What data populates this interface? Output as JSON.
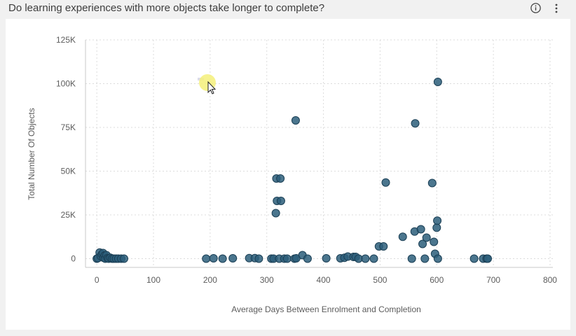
{
  "header": {
    "title": "Do learning experiences with more objects take longer to complete?",
    "info_icon": "info-circle-icon",
    "menu_icon": "vertical-ellipsis-icon"
  },
  "colors": {
    "point_fill": "#2c5e7a",
    "point_stroke": "#1b3f55",
    "grid": "#dcdcdc",
    "axis": "#c8c8c8",
    "highlight": "#f5f07a"
  },
  "chart_data": {
    "type": "scatter",
    "title": "Do learning experiences with more objects take longer to complete?",
    "xlabel": "Average Days Between Enrolment and Completion",
    "ylabel": "Total Number Of Objects",
    "xlim": [
      -20,
      805
    ],
    "ylim": [
      -5000,
      125000
    ],
    "x_ticks": [
      0,
      100,
      200,
      300,
      400,
      500,
      600,
      700,
      800
    ],
    "x_tick_labels": [
      "0",
      "100",
      "200",
      "300",
      "400",
      "500",
      "600",
      "700",
      "800"
    ],
    "y_ticks": [
      0,
      25000,
      50000,
      75000,
      100000,
      125000
    ],
    "y_tick_labels": [
      "0",
      "25K",
      "50K",
      "75K",
      "100K",
      "125K"
    ],
    "grid": true,
    "points": [
      {
        "x": 0,
        "y": 0
      },
      {
        "x": 2,
        "y": 300
      },
      {
        "x": 5,
        "y": 3500
      },
      {
        "x": 7,
        "y": 1500
      },
      {
        "x": 9,
        "y": 2500
      },
      {
        "x": 11,
        "y": 3200
      },
      {
        "x": 12,
        "y": 500
      },
      {
        "x": 14,
        "y": 1800
      },
      {
        "x": 15,
        "y": 0
      },
      {
        "x": 17,
        "y": 2000
      },
      {
        "x": 19,
        "y": 300
      },
      {
        "x": 21,
        "y": 0
      },
      {
        "x": 24,
        "y": 500
      },
      {
        "x": 27,
        "y": 0
      },
      {
        "x": 30,
        "y": 0
      },
      {
        "x": 34,
        "y": 0
      },
      {
        "x": 38,
        "y": 0
      },
      {
        "x": 43,
        "y": 0
      },
      {
        "x": 48,
        "y": 0
      },
      {
        "x": 193,
        "y": 0
      },
      {
        "x": 206,
        "y": 200
      },
      {
        "x": 222,
        "y": 0
      },
      {
        "x": 240,
        "y": 200
      },
      {
        "x": 269,
        "y": 300
      },
      {
        "x": 279,
        "y": 300
      },
      {
        "x": 286,
        "y": 0
      },
      {
        "x": 308,
        "y": 0
      },
      {
        "x": 312,
        "y": 0
      },
      {
        "x": 316,
        "y": 26000
      },
      {
        "x": 317,
        "y": 45800
      },
      {
        "x": 318,
        "y": 33000
      },
      {
        "x": 322,
        "y": 0
      },
      {
        "x": 324,
        "y": 45800
      },
      {
        "x": 325,
        "y": 33000
      },
      {
        "x": 331,
        "y": 0
      },
      {
        "x": 336,
        "y": 0
      },
      {
        "x": 349,
        "y": 0
      },
      {
        "x": 351,
        "y": 79000
      },
      {
        "x": 352,
        "y": 200
      },
      {
        "x": 363,
        "y": 2000
      },
      {
        "x": 372,
        "y": 0
      },
      {
        "x": 405,
        "y": 200
      },
      {
        "x": 430,
        "y": 200
      },
      {
        "x": 437,
        "y": 500
      },
      {
        "x": 443,
        "y": 1200
      },
      {
        "x": 453,
        "y": 1000
      },
      {
        "x": 457,
        "y": 1000
      },
      {
        "x": 462,
        "y": 0
      },
      {
        "x": 474,
        "y": 0
      },
      {
        "x": 489,
        "y": 0
      },
      {
        "x": 498,
        "y": 7000
      },
      {
        "x": 506,
        "y": 7000
      },
      {
        "x": 510,
        "y": 43500
      },
      {
        "x": 540,
        "y": 12500
      },
      {
        "x": 556,
        "y": 0
      },
      {
        "x": 561,
        "y": 15500
      },
      {
        "x": 562,
        "y": 77300
      },
      {
        "x": 572,
        "y": 16800
      },
      {
        "x": 575,
        "y": 8400
      },
      {
        "x": 579,
        "y": 0
      },
      {
        "x": 582,
        "y": 12000
      },
      {
        "x": 592,
        "y": 43200
      },
      {
        "x": 595,
        "y": 9600
      },
      {
        "x": 597,
        "y": 2800
      },
      {
        "x": 600,
        "y": 17700
      },
      {
        "x": 601,
        "y": 21700
      },
      {
        "x": 602,
        "y": 0
      },
      {
        "x": 602,
        "y": 101000
      },
      {
        "x": 666,
        "y": 0
      },
      {
        "x": 682,
        "y": 0
      },
      {
        "x": 688,
        "y": 0
      },
      {
        "x": 690,
        "y": 0
      }
    ]
  }
}
